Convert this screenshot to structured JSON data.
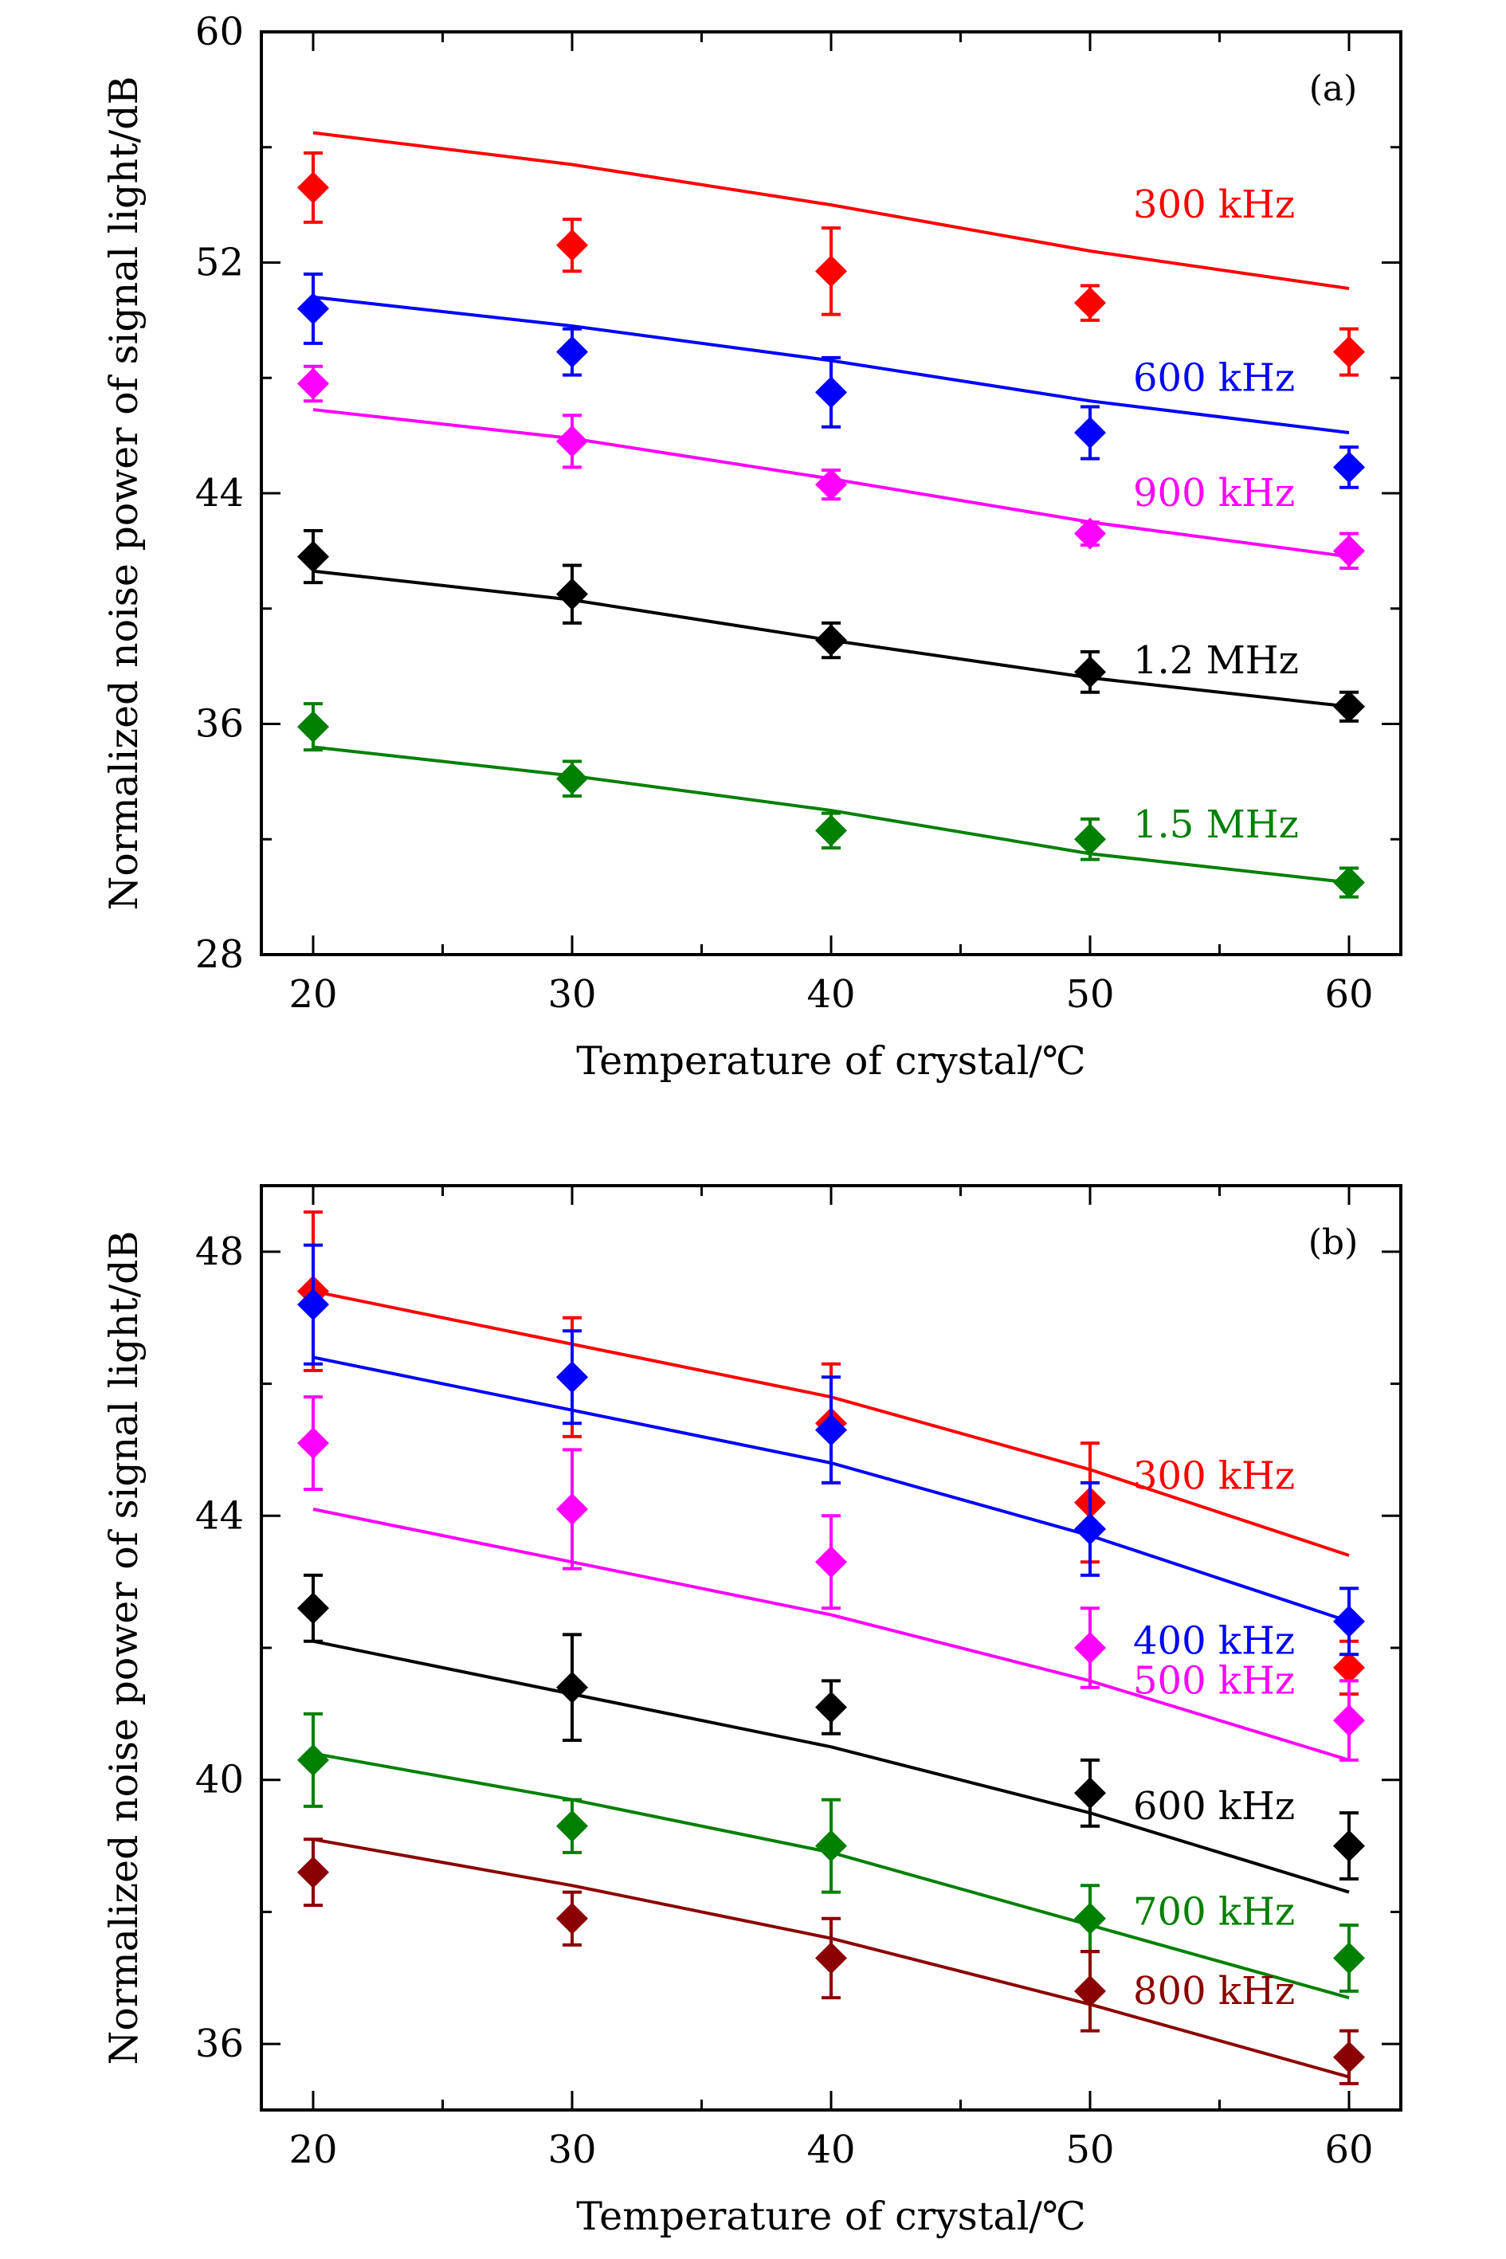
{
  "chart_data": [
    {
      "type": "scatter",
      "panel_label": "(a)",
      "xlabel": "Temperature of crystal/℃",
      "ylabel": "Normalized noise power of signal light/dB",
      "xlim": [
        18,
        62
      ],
      "ylim": [
        28,
        60
      ],
      "xticks": [
        20,
        30,
        40,
        50,
        60
      ],
      "xtick_labels": [
        "20",
        "30",
        "40",
        "50",
        "60"
      ],
      "yticks": [
        28,
        36,
        44,
        52,
        60
      ],
      "ytick_labels": [
        "28",
        "36",
        "44",
        "52",
        "60"
      ],
      "x": [
        20,
        30,
        40,
        50,
        60
      ],
      "grid": false,
      "series": [
        {
          "name": "300 kHz",
          "color": "#ff0000",
          "label_y": 54.0,
          "values": [
            54.6,
            52.6,
            51.7,
            50.6,
            48.9
          ],
          "errors": [
            1.2,
            0.9,
            1.5,
            0.6,
            0.8
          ],
          "fit": [
            56.5,
            55.4,
            54.0,
            52.4,
            51.1
          ]
        },
        {
          "name": "600 kHz",
          "color": "#0000ff",
          "label_y": 48.0,
          "values": [
            50.4,
            48.9,
            47.5,
            46.1,
            44.9
          ],
          "errors": [
            1.2,
            0.8,
            1.2,
            0.9,
            0.7
          ],
          "fit": [
            50.8,
            49.8,
            48.6,
            47.2,
            46.1
          ]
        },
        {
          "name": "900 kHz",
          "color": "#ff00ff",
          "label_y": 44.0,
          "values": [
            47.8,
            45.8,
            44.3,
            42.6,
            42.0
          ],
          "errors": [
            0.6,
            0.9,
            0.5,
            0.4,
            0.6
          ],
          "fit": [
            46.9,
            45.9,
            44.5,
            43.0,
            41.8
          ]
        },
        {
          "name": "1.2 MHz",
          "color": "#000000",
          "label_y": 38.2,
          "values": [
            41.8,
            40.5,
            38.9,
            37.8,
            36.6
          ],
          "errors": [
            0.9,
            1.0,
            0.6,
            0.7,
            0.5
          ],
          "fit": [
            41.3,
            40.3,
            38.9,
            37.6,
            36.6
          ]
        },
        {
          "name": "1.5 MHz",
          "color": "#008000",
          "label_y": 32.5,
          "values": [
            35.9,
            34.1,
            32.3,
            32.0,
            30.5
          ],
          "errors": [
            0.8,
            0.6,
            0.6,
            0.7,
            0.5
          ],
          "fit": [
            35.2,
            34.2,
            33.0,
            31.5,
            30.5
          ]
        }
      ]
    },
    {
      "type": "scatter",
      "panel_label": "(b)",
      "xlabel": "Temperature of crystal/℃",
      "ylabel": "Normalized noise power of signal light/dB",
      "xlim": [
        18,
        62
      ],
      "ylim": [
        35,
        49
      ],
      "xticks": [
        20,
        30,
        40,
        50,
        60
      ],
      "xtick_labels": [
        "20",
        "30",
        "40",
        "50",
        "60"
      ],
      "yticks": [
        36,
        40,
        44,
        48
      ],
      "ytick_labels": [
        "36",
        "40",
        "44",
        "48"
      ],
      "x": [
        20,
        30,
        40,
        50,
        60
      ],
      "grid": false,
      "series": [
        {
          "name": "300 kHz",
          "color": "#ff0000",
          "label_y": 44.6,
          "values": [
            47.4,
            46.1,
            45.4,
            44.2,
            41.7
          ],
          "errors": [
            1.2,
            0.9,
            0.9,
            0.9,
            0.4
          ],
          "fit": [
            47.4,
            46.6,
            45.8,
            44.7,
            43.4
          ]
        },
        {
          "name": "400 kHz",
          "color": "#0000ff",
          "label_y": 42.1,
          "values": [
            47.2,
            46.1,
            45.3,
            43.8,
            42.4
          ],
          "errors": [
            0.9,
            0.7,
            0.8,
            0.7,
            0.5
          ],
          "fit": [
            46.4,
            45.6,
            44.8,
            43.7,
            42.4
          ]
        },
        {
          "name": "500 kHz",
          "color": "#ff00ff",
          "label_y": 41.5,
          "values": [
            45.1,
            44.1,
            43.3,
            42.0,
            40.9
          ],
          "errors": [
            0.7,
            0.9,
            0.7,
            0.6,
            0.6
          ],
          "fit": [
            44.1,
            43.3,
            42.5,
            41.5,
            40.3
          ]
        },
        {
          "name": "600 kHz",
          "color": "#000000",
          "label_y": 39.6,
          "values": [
            42.6,
            41.4,
            41.1,
            39.8,
            39.0
          ],
          "errors": [
            0.5,
            0.8,
            0.4,
            0.5,
            0.5
          ],
          "fit": [
            42.1,
            41.3,
            40.5,
            39.5,
            38.3
          ]
        },
        {
          "name": "700 kHz",
          "color": "#008000",
          "label_y": 38.0,
          "values": [
            40.3,
            39.3,
            39.0,
            37.9,
            37.3
          ],
          "errors": [
            0.7,
            0.4,
            0.7,
            0.5,
            0.5
          ],
          "fit": [
            40.4,
            39.7,
            38.9,
            37.8,
            36.7
          ]
        },
        {
          "name": "800 kHz",
          "color": "#8b0000",
          "label_y": 36.8,
          "values": [
            38.6,
            37.9,
            37.3,
            36.8,
            35.8
          ],
          "errors": [
            0.5,
            0.4,
            0.6,
            0.6,
            0.4
          ],
          "fit": [
            39.1,
            38.4,
            37.6,
            36.6,
            35.5
          ]
        }
      ]
    }
  ]
}
